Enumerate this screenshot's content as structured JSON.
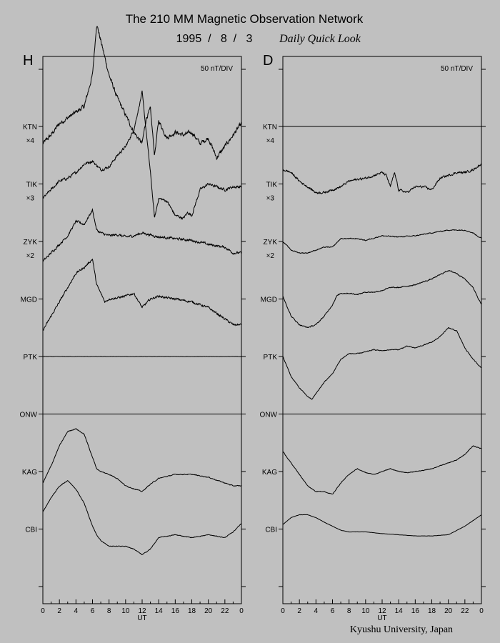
{
  "chart_data": {
    "type": "line",
    "title": "The 210 MM Magnetic Observation Network",
    "date": "1995  /   8  /   3",
    "subtitle": "Daily Quick Look",
    "credit": "Kyushu University, Japan",
    "xlabel": "UT",
    "x_ticks": [
      "0",
      "2",
      "4",
      "6",
      "8",
      "10",
      "12",
      "14",
      "16",
      "18",
      "20",
      "22",
      "0"
    ],
    "xlim": [
      0,
      24
    ],
    "scale_label": "50 nT/DIV",
    "stations": [
      {
        "name": "KTN",
        "mult": "×4"
      },
      {
        "name": "TIK",
        "mult": "×3"
      },
      {
        "name": "ZYK",
        "mult": "×2"
      },
      {
        "name": "MGD",
        "mult": ""
      },
      {
        "name": "PTK",
        "mult": ""
      },
      {
        "name": "ONW",
        "mult": ""
      },
      {
        "name": "KAG",
        "mult": ""
      },
      {
        "name": "CBI",
        "mult": ""
      }
    ],
    "panels": [
      {
        "component": "H",
        "series": [
          {
            "station": "KTN",
            "noise": 0.28,
            "t": [
              0,
              1,
              2,
              3,
              4,
              5,
              6,
              6.5,
              7,
              8,
              9,
              10,
              11,
              12,
              12.5,
              13,
              13.5,
              14,
              15,
              16,
              17,
              18,
              19,
              20,
              21,
              22,
              23,
              24
            ],
            "offset": [
              -0.3,
              -0.15,
              0.05,
              0.15,
              0.25,
              0.35,
              0.9,
              1.8,
              1.5,
              0.9,
              0.5,
              0.2,
              -0.1,
              -0.3,
              0.15,
              0.3,
              -0.5,
              0.1,
              -0.2,
              -0.1,
              -0.15,
              -0.1,
              -0.3,
              -0.2,
              -0.55,
              -0.35,
              -0.15,
              0.05
            ]
          },
          {
            "station": "TIK",
            "noise": 0.18,
            "t": [
              0,
              1,
              2,
              3,
              4,
              5,
              6,
              7,
              8,
              9,
              10,
              11,
              12,
              13,
              13.5,
              14,
              15,
              16,
              17,
              17.5,
              18,
              19,
              20,
              21,
              22,
              23,
              24
            ],
            "offset": [
              -0.25,
              -0.1,
              0.05,
              0.1,
              0.2,
              0.35,
              0.4,
              0.25,
              0.3,
              0.5,
              0.65,
              0.95,
              1.6,
              0.2,
              -0.6,
              -0.25,
              -0.3,
              -0.55,
              -0.6,
              -0.5,
              -0.55,
              -0.1,
              0.0,
              -0.05,
              -0.1,
              -0.05,
              -0.05
            ]
          },
          {
            "station": "ZYK",
            "noise": 0.16,
            "t": [
              0,
              1,
              2,
              3,
              4,
              5,
              6,
              6.5,
              7,
              8,
              9,
              10,
              11,
              12,
              14,
              16,
              18,
              20,
              22,
              23,
              24
            ],
            "offset": [
              -0.35,
              -0.2,
              -0.05,
              0.1,
              0.35,
              0.3,
              0.55,
              0.2,
              0.15,
              0.1,
              0.12,
              0.08,
              0.1,
              0.15,
              0.08,
              0.05,
              0.02,
              -0.05,
              -0.1,
              -0.2,
              -0.2
            ]
          },
          {
            "station": "MGD",
            "noise": 0.14,
            "t": [
              0,
              1,
              2,
              3,
              4,
              5,
              6,
              6.5,
              7,
              7.5,
              8,
              9,
              10,
              11,
              12,
              13,
              14,
              15,
              16,
              18,
              20,
              22,
              23,
              24
            ],
            "offset": [
              -0.55,
              -0.3,
              -0.05,
              0.2,
              0.45,
              0.55,
              0.7,
              0.25,
              0.1,
              -0.05,
              0.0,
              0.02,
              0.05,
              0.1,
              -0.15,
              0.0,
              0.05,
              0.02,
              0.0,
              -0.05,
              -0.15,
              -0.35,
              -0.45,
              -0.45
            ]
          },
          {
            "station": "PTK",
            "noise": 0.02,
            "t": [
              0,
              24
            ],
            "offset": [
              0,
              0
            ]
          },
          {
            "station": "ONW",
            "noise": 0.0,
            "t": [
              0,
              24
            ],
            "offset": [
              0,
              0
            ]
          },
          {
            "station": "KAG",
            "noise": 0.05,
            "t": [
              0,
              1,
              2,
              3,
              4,
              5,
              6,
              6.5,
              7,
              8,
              9,
              10,
              11,
              12,
              13,
              14,
              16,
              18,
              20,
              22,
              23,
              24
            ],
            "offset": [
              -0.2,
              0.1,
              0.45,
              0.7,
              0.75,
              0.65,
              0.25,
              0.05,
              0.0,
              -0.05,
              -0.12,
              -0.25,
              -0.3,
              -0.35,
              -0.22,
              -0.12,
              -0.05,
              -0.05,
              -0.1,
              -0.2,
              -0.25,
              -0.25
            ]
          },
          {
            "station": "CBI",
            "noise": 0.04,
            "t": [
              0,
              1,
              2,
              3,
              4,
              5,
              6,
              6.5,
              7,
              8,
              9,
              10,
              11,
              12,
              13,
              14,
              16,
              18,
              20,
              22,
              23,
              24
            ],
            "offset": [
              0.3,
              0.55,
              0.75,
              0.85,
              0.7,
              0.45,
              0.05,
              -0.1,
              -0.2,
              -0.3,
              -0.3,
              -0.3,
              -0.35,
              -0.45,
              -0.35,
              -0.15,
              -0.1,
              -0.15,
              -0.1,
              -0.15,
              -0.05,
              0.1
            ]
          }
        ]
      },
      {
        "component": "D",
        "series": [
          {
            "station": "KTN",
            "noise": 0.0,
            "t": [
              0,
              24
            ],
            "offset": [
              0,
              0
            ]
          },
          {
            "station": "TIK",
            "noise": 0.14,
            "t": [
              0,
              1,
              2,
              3,
              4,
              5,
              6,
              7,
              8,
              9,
              10,
              11,
              12,
              12.5,
              13,
              13.5,
              14,
              15,
              16,
              17,
              18,
              19,
              20,
              21,
              22,
              23,
              24
            ],
            "offset": [
              0.25,
              0.2,
              0.05,
              -0.05,
              -0.15,
              -0.15,
              -0.1,
              -0.05,
              0.05,
              0.08,
              0.1,
              0.15,
              0.2,
              0.15,
              -0.05,
              0.2,
              -0.1,
              -0.15,
              -0.05,
              -0.05,
              -0.1,
              0.1,
              0.15,
              0.2,
              0.2,
              0.25,
              0.35
            ]
          },
          {
            "station": "ZYK",
            "noise": 0.06,
            "t": [
              0,
              1,
              2,
              3,
              4,
              5,
              6,
              7,
              8,
              9,
              10,
              12,
              14,
              16,
              18,
              20,
              22,
              23,
              24
            ],
            "offset": [
              0.0,
              -0.15,
              -0.2,
              -0.2,
              -0.15,
              -0.1,
              -0.1,
              0.05,
              0.05,
              0.05,
              0.02,
              0.1,
              0.08,
              0.1,
              0.15,
              0.2,
              0.2,
              0.15,
              0.05
            ]
          },
          {
            "station": "MGD",
            "noise": 0.07,
            "t": [
              0,
              1,
              2,
              3,
              4,
              5,
              6,
              6.5,
              7,
              8,
              9,
              10,
              11,
              12,
              13,
              14,
              16,
              18,
              20,
              21,
              22,
              23,
              24
            ],
            "offset": [
              0.05,
              -0.3,
              -0.45,
              -0.5,
              -0.45,
              -0.3,
              -0.1,
              0.05,
              0.1,
              0.1,
              0.08,
              0.12,
              0.12,
              0.15,
              0.2,
              0.2,
              0.25,
              0.35,
              0.5,
              0.45,
              0.35,
              0.2,
              -0.1
            ]
          },
          {
            "station": "PTK",
            "noise": 0.05,
            "t": [
              0,
              1,
              2,
              3,
              3.5,
              4,
              5,
              6,
              7,
              8,
              9,
              10,
              11,
              12,
              13,
              14,
              15,
              16,
              17,
              18,
              19,
              20,
              21,
              22,
              23,
              24
            ],
            "offset": [
              0.0,
              -0.35,
              -0.55,
              -0.7,
              -0.75,
              -0.65,
              -0.45,
              -0.3,
              -0.05,
              0.05,
              0.05,
              0.08,
              0.12,
              0.1,
              0.12,
              0.12,
              0.18,
              0.15,
              0.2,
              0.25,
              0.35,
              0.5,
              0.45,
              0.15,
              -0.05,
              -0.2
            ]
          },
          {
            "station": "ONW",
            "noise": 0.0,
            "t": [
              0,
              24
            ],
            "offset": [
              0,
              0
            ]
          },
          {
            "station": "KAG",
            "noise": 0.04,
            "t": [
              0,
              1,
              2,
              3,
              4,
              5,
              6,
              7,
              8,
              9,
              10,
              11,
              12,
              13,
              14,
              15,
              16,
              17,
              18,
              19,
              20,
              21,
              22,
              23,
              24
            ],
            "offset": [
              0.35,
              0.15,
              -0.05,
              -0.25,
              -0.35,
              -0.35,
              -0.4,
              -0.2,
              -0.05,
              0.05,
              -0.02,
              -0.05,
              0.0,
              0.05,
              0.0,
              -0.02,
              0.0,
              0.02,
              0.05,
              0.1,
              0.15,
              0.2,
              0.3,
              0.45,
              0.4
            ]
          },
          {
            "station": "CBI",
            "noise": 0.015,
            "t": [
              0,
              1,
              2,
              3,
              4,
              5,
              6,
              7,
              8,
              9,
              10,
              12,
              14,
              16,
              18,
              20,
              22,
              23,
              24
            ],
            "offset": [
              0.08,
              0.2,
              0.25,
              0.25,
              0.2,
              0.12,
              0.05,
              -0.02,
              -0.05,
              -0.05,
              -0.05,
              -0.08,
              -0.1,
              -0.12,
              -0.12,
              -0.1,
              0.05,
              0.15,
              0.25
            ]
          }
        ]
      }
    ]
  }
}
